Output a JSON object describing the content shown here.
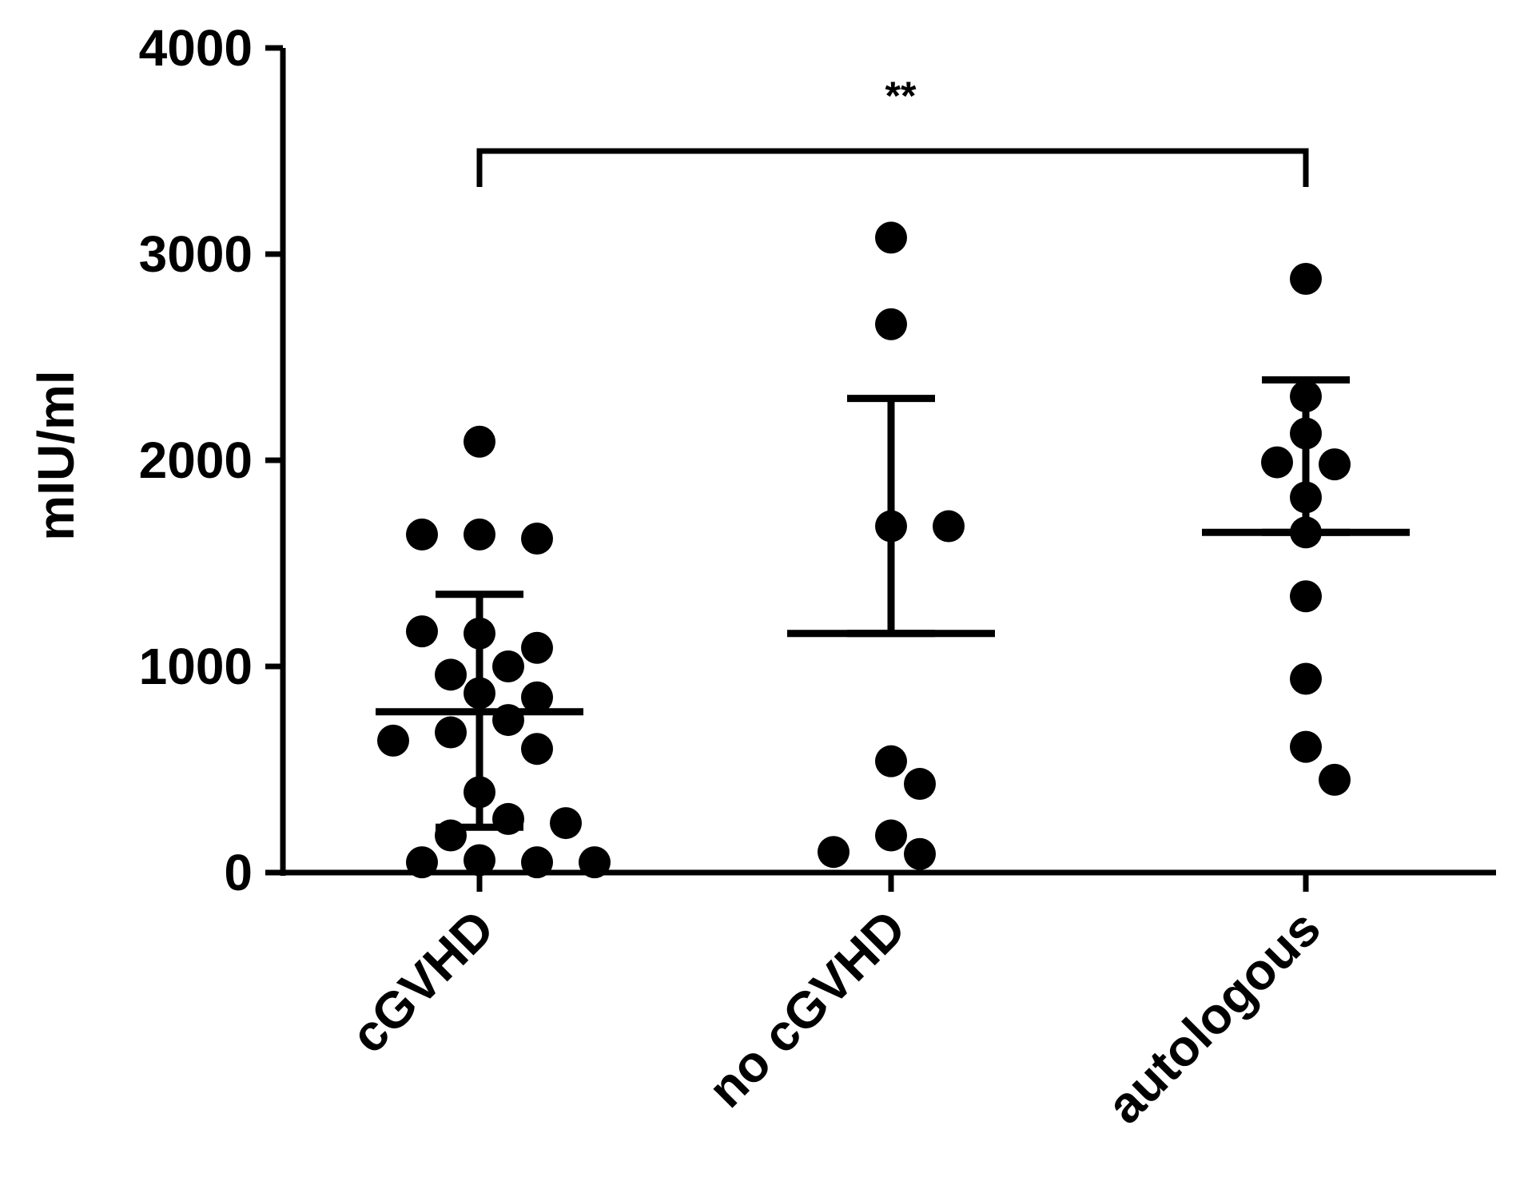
{
  "chart_data": {
    "type": "scatter",
    "title": "",
    "xlabel": "",
    "ylabel": "mIU/ml",
    "ylim": [
      0,
      4000
    ],
    "yticks": [
      0,
      1000,
      2000,
      3000,
      4000
    ],
    "grid": false,
    "legend": "none",
    "categories": [
      "cGVHD",
      "no cGVHD",
      "autologous"
    ],
    "colors": {
      "points": "#000000",
      "axes": "#000000",
      "background": "#ffffff"
    },
    "series": [
      {
        "category": "cGVHD",
        "values": [
          2090,
          1640,
          1620,
          1640,
          1160,
          1000,
          960,
          1090,
          1170,
          870,
          740,
          680,
          850,
          600,
          640,
          390,
          260,
          180,
          240,
          60,
          50,
          50,
          50
        ],
        "mean": 780,
        "error_upper": 1350,
        "error_lower": 220
      },
      {
        "category": "no cGVHD",
        "values": [
          3080,
          2660,
          1680,
          1680,
          540,
          430,
          180,
          90,
          100
        ],
        "mean": 1160,
        "error_upper": 2300,
        "error_lower": 1160
      },
      {
        "category": "autologous",
        "values": [
          2880,
          2310,
          2130,
          1980,
          1990,
          1820,
          1650,
          1340,
          940,
          610,
          450
        ],
        "mean": 1650,
        "error_upper": 2390,
        "error_lower": 1650
      }
    ],
    "annotations": [
      {
        "text": "**",
        "from": "cGVHD",
        "to": "autologous",
        "y": 3500
      }
    ]
  }
}
